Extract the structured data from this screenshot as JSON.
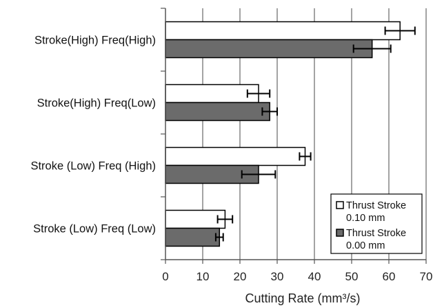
{
  "chart_data": {
    "type": "bar",
    "orientation": "horizontal",
    "categories": [
      "Stroke(High) Freq(High)",
      "Stroke(High) Freq(Low)",
      "Stroke (Low) Freq (High)",
      "Stroke (Low) Freq (Low)"
    ],
    "series": [
      {
        "name": "Thrust Stroke 0.10 mm",
        "name_lines": [
          "Thrust Stroke",
          "0.10 mm"
        ],
        "values": [
          63.0,
          25.0,
          37.5,
          16.0
        ],
        "errors": [
          4.0,
          3.0,
          1.5,
          2.0
        ],
        "color": "#ffffff"
      },
      {
        "name": "Thrust Stroke 0.00 mm",
        "name_lines": [
          "Thrust Stroke",
          "0.00 mm"
        ],
        "values": [
          55.5,
          28.0,
          25.0,
          14.5
        ],
        "errors": [
          5.0,
          2.0,
          4.5,
          1.0
        ],
        "color": "#6b6b6b"
      }
    ],
    "xlabel": "Cutting Rate  (mm³/s)",
    "xlim": [
      0,
      70
    ],
    "xticks": [
      0,
      10,
      20,
      30,
      40,
      50,
      60,
      70
    ],
    "grid": "vertical",
    "legend_position": "bottom-right",
    "bar_outline_color": "#000000"
  }
}
